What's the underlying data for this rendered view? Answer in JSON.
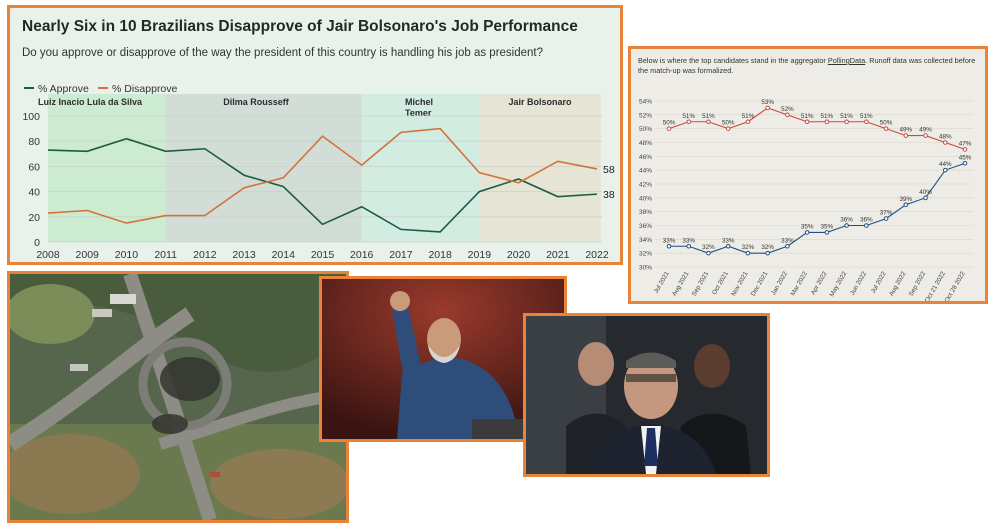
{
  "chart1": {
    "title": "Nearly Six in 10 Brazilians Disapprove of Jair Bolsonaro's Job Performance",
    "subtitle": "Do you approve or disapprove of the way the president of this country is handling his job as president?",
    "colors": {
      "approve": "#1a5c43",
      "disapprove": "#d2733a"
    }
  },
  "chart2": {
    "note_prefix": "Below is where the top candidates stand in the aggregator ",
    "note_link": "PollingData",
    "note_suffix": ". Runoff data was collected before the match-up was formalized.",
    "colors": {
      "lula": "#c94a3f",
      "bolsonaro": "#1c4f86"
    }
  },
  "chart_data": [
    {
      "type": "line",
      "title": "Nearly Six in 10 Brazilians Disapprove of Jair Bolsonaro's Job Performance",
      "subtitle": "Do you approve or disapprove of the way the president of this country is handling his job as president?",
      "x": [
        "2008",
        "2009",
        "2010",
        "2011",
        "2012",
        "2013",
        "2014",
        "2015",
        "2016",
        "2017",
        "2018",
        "2019",
        "2020",
        "2021",
        "2022"
      ],
      "series": [
        {
          "name": "% Approve",
          "values": [
            73,
            72,
            82,
            72,
            74,
            53,
            44,
            14,
            28,
            10,
            8,
            40,
            50,
            36,
            38
          ]
        },
        {
          "name": "% Disapprove",
          "values": [
            23,
            25,
            15,
            21,
            21,
            43,
            51,
            84,
            61,
            87,
            90,
            55,
            47,
            64,
            58
          ]
        }
      ],
      "end_labels": [
        "38",
        "58"
      ],
      "ylim": [
        0,
        100
      ],
      "yticks": [
        "0",
        "20",
        "40",
        "60",
        "80",
        "100"
      ],
      "legend": "top-left",
      "grid": true,
      "presidencies": [
        {
          "label": "Luiz Inacio Lula da Silva",
          "start": 2008,
          "end": 2011,
          "color": "#cdebd1"
        },
        {
          "label": "Dilma Rousseff",
          "start": 2011,
          "end": 2016,
          "color": "#d3ddd8"
        },
        {
          "label": "Michel Temer",
          "start": 2016,
          "end": 2019,
          "color": "#d2ece2"
        },
        {
          "label": "Jair Bolsonaro",
          "start": 2019,
          "end": 2022.1,
          "color": "#e6e4d5"
        }
      ]
    },
    {
      "type": "line",
      "x": [
        "Jul 2021",
        "Aug 2021",
        "Sep 2021",
        "Oct 2021",
        "Nov 2021",
        "Dec 2021",
        "Jan 2022",
        "Mar 2022",
        "Apr 2022",
        "May 2022",
        "Jun 2022",
        "Jul 2022",
        "Aug 2022",
        "Sep 2022",
        "Oct 21 2022",
        "Oct 28 2022"
      ],
      "series": [
        {
          "values": [
            50,
            51,
            51,
            50,
            51,
            53,
            52,
            51,
            51,
            51,
            51,
            50,
            49,
            49,
            48,
            47
          ]
        },
        {
          "values": [
            33,
            33,
            32,
            33,
            32,
            32,
            33,
            35,
            35,
            36,
            36,
            37,
            39,
            40,
            44,
            45
          ]
        }
      ],
      "point_labels": {
        "top": [
          "50%",
          "51%",
          "51%",
          "50%",
          "51%",
          "53%",
          "52%",
          "51%",
          "51%",
          "51%",
          "51%",
          "50%",
          "49%",
          "49%",
          "48%",
          "47%"
        ],
        "bottom": [
          "33%",
          "33%",
          "32%",
          "33%",
          "32%",
          "32%",
          "33%",
          "35%",
          "35%",
          "36%",
          "36%",
          "37%",
          "39%",
          "40%",
          "44%",
          "45%"
        ]
      },
      "ylim": [
        30,
        54
      ],
      "yticks": [
        "30%",
        "32%",
        "34%",
        "36%",
        "38%",
        "40%",
        "42%",
        "44%",
        "46%",
        "48%",
        "50%",
        "52%",
        "54%"
      ],
      "grid": true
    }
  ]
}
